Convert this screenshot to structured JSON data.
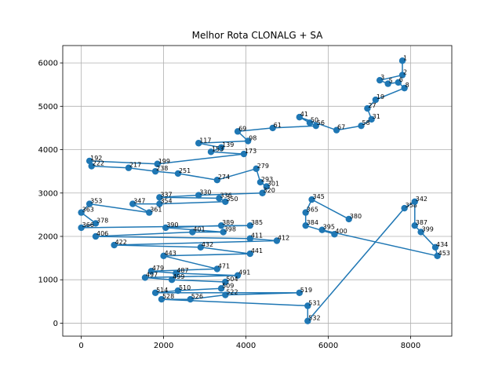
{
  "chart_data": {
    "type": "line",
    "title": "Melhor Rota CLONALG + SA",
    "xlabel": "",
    "ylabel": "",
    "xlim": [
      -450,
      9000
    ],
    "ylim": [
      -300,
      6400
    ],
    "xticks": [
      0,
      2000,
      4000,
      6000,
      8000
    ],
    "yticks": [
      0,
      1000,
      2000,
      3000,
      4000,
      5000,
      6000
    ],
    "grid": true,
    "marker": "circle",
    "colors": {
      "line": "#1f77b4",
      "marker": "#1f77b4",
      "grid": "#b0b0b0"
    },
    "series": [
      {
        "points": [
          {
            "id": 1,
            "x": 7800,
            "y": 6050
          },
          {
            "id": 2,
            "x": 7800,
            "y": 5720
          },
          {
            "id": 3,
            "x": 7250,
            "y": 5600
          },
          {
            "id": 5,
            "x": 7450,
            "y": 5520
          },
          {
            "id": 6,
            "x": 7700,
            "y": 5550
          },
          {
            "id": 8,
            "x": 7850,
            "y": 5420
          },
          {
            "id": 19,
            "x": 7150,
            "y": 5150
          },
          {
            "id": 27,
            "x": 6950,
            "y": 4950
          },
          {
            "id": 31,
            "x": 7050,
            "y": 4700
          },
          {
            "id": 58,
            "x": 6800,
            "y": 4550
          },
          {
            "id": 67,
            "x": 6200,
            "y": 4450
          },
          {
            "id": 41,
            "x": 5300,
            "y": 4750
          },
          {
            "id": 50,
            "x": 5550,
            "y": 4620
          },
          {
            "id": 56,
            "x": 5700,
            "y": 4550
          },
          {
            "id": 61,
            "x": 4650,
            "y": 4500
          },
          {
            "id": 69,
            "x": 3800,
            "y": 4420
          },
          {
            "id": 98,
            "x": 4050,
            "y": 4200
          },
          {
            "id": 117,
            "x": 2850,
            "y": 4150
          },
          {
            "id": 139,
            "x": 3400,
            "y": 4050
          },
          {
            "id": 153,
            "x": 3150,
            "y": 3950
          },
          {
            "id": 173,
            "x": 3950,
            "y": 3900
          },
          {
            "id": 199,
            "x": 1850,
            "y": 3670
          },
          {
            "id": 192,
            "x": 200,
            "y": 3740
          },
          {
            "id": 222,
            "x": 250,
            "y": 3620
          },
          {
            "id": 217,
            "x": 1150,
            "y": 3580
          },
          {
            "id": 238,
            "x": 1800,
            "y": 3500
          },
          {
            "id": 251,
            "x": 2350,
            "y": 3450
          },
          {
            "id": 274,
            "x": 3300,
            "y": 3300
          },
          {
            "id": 279,
            "x": 4250,
            "y": 3560
          },
          {
            "id": 293,
            "x": 4350,
            "y": 3250
          },
          {
            "id": 301,
            "x": 4500,
            "y": 3150
          },
          {
            "id": 320,
            "x": 4400,
            "y": 3000
          },
          {
            "id": 330,
            "x": 2850,
            "y": 2950
          },
          {
            "id": 337,
            "x": 1900,
            "y": 2900
          },
          {
            "id": 336,
            "x": 3350,
            "y": 2880
          },
          {
            "id": 350,
            "x": 3500,
            "y": 2800
          },
          {
            "id": 354,
            "x": 1900,
            "y": 2750
          },
          {
            "id": 347,
            "x": 1250,
            "y": 2750
          },
          {
            "id": 361,
            "x": 1650,
            "y": 2550
          },
          {
            "id": 353,
            "x": 200,
            "y": 2750
          },
          {
            "id": 363,
            "x": 0,
            "y": 2550
          },
          {
            "id": 378,
            "x": 350,
            "y": 2300
          },
          {
            "id": 366,
            "x": 0,
            "y": 2200
          },
          {
            "id": 385,
            "x": 4100,
            "y": 2250
          },
          {
            "id": 389,
            "x": 3400,
            "y": 2250
          },
          {
            "id": 390,
            "x": 2050,
            "y": 2200
          },
          {
            "id": 398,
            "x": 3450,
            "y": 2100
          },
          {
            "id": 401,
            "x": 2700,
            "y": 2100
          },
          {
            "id": 406,
            "x": 350,
            "y": 2000
          },
          {
            "id": 411,
            "x": 4100,
            "y": 1950
          },
          {
            "id": 412,
            "x": 4750,
            "y": 1900
          },
          {
            "id": 422,
            "x": 800,
            "y": 1800
          },
          {
            "id": 432,
            "x": 2900,
            "y": 1750
          },
          {
            "id": 441,
            "x": 4100,
            "y": 1600
          },
          {
            "id": 443,
            "x": 2000,
            "y": 1550
          },
          {
            "id": 471,
            "x": 3300,
            "y": 1250
          },
          {
            "id": 479,
            "x": 1700,
            "y": 1200
          },
          {
            "id": 487,
            "x": 2300,
            "y": 1150
          },
          {
            "id": 491,
            "x": 3800,
            "y": 1100
          },
          {
            "id": 497,
            "x": 1550,
            "y": 1050
          },
          {
            "id": 499,
            "x": 2200,
            "y": 1000
          },
          {
            "id": 504,
            "x": 3500,
            "y": 950
          },
          {
            "id": 509,
            "x": 3400,
            "y": 800
          },
          {
            "id": 510,
            "x": 2350,
            "y": 750
          },
          {
            "id": 514,
            "x": 1800,
            "y": 700
          },
          {
            "id": 519,
            "x": 5300,
            "y": 700
          },
          {
            "id": 522,
            "x": 3500,
            "y": 650
          },
          {
            "id": 526,
            "x": 2650,
            "y": 550
          },
          {
            "id": 528,
            "x": 1950,
            "y": 550
          },
          {
            "id": 531,
            "x": 5500,
            "y": 400
          },
          {
            "id": 532,
            "x": 5500,
            "y": 50
          },
          {
            "id": 358,
            "x": 7850,
            "y": 2650
          },
          {
            "id": 342,
            "x": 8100,
            "y": 2800
          },
          {
            "id": 387,
            "x": 8100,
            "y": 2250
          },
          {
            "id": 399,
            "x": 8250,
            "y": 2100
          },
          {
            "id": 434,
            "x": 8600,
            "y": 1750
          },
          {
            "id": 453,
            "x": 8650,
            "y": 1550
          },
          {
            "id": 395,
            "x": 5850,
            "y": 2150
          },
          {
            "id": 400,
            "x": 6150,
            "y": 2050
          },
          {
            "id": 384,
            "x": 5450,
            "y": 2250
          },
          {
            "id": 365,
            "x": 5450,
            "y": 2550
          },
          {
            "id": 345,
            "x": 5600,
            "y": 2850
          },
          {
            "id": 380,
            "x": 6500,
            "y": 2400
          }
        ]
      }
    ]
  }
}
